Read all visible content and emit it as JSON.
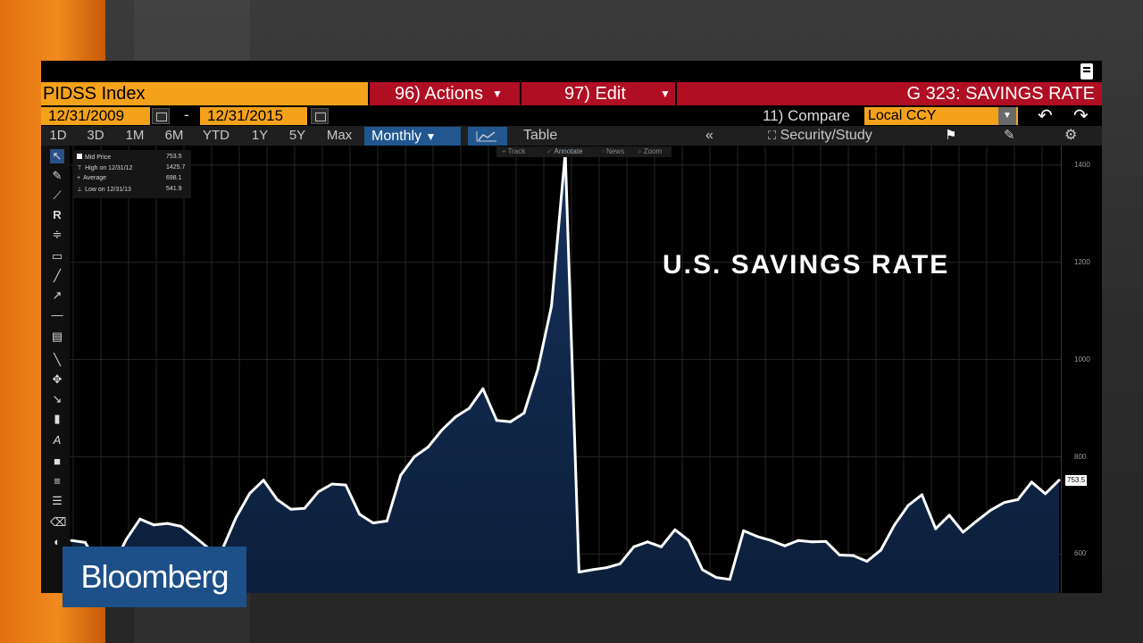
{
  "header": {
    "ticker": "PIDSS Index",
    "actions": "96) Actions",
    "edit": "97) Edit",
    "title": "G 323: SAVINGS RATE"
  },
  "range_bar": {
    "start_date": "12/31/2009",
    "end_date": "12/31/2015",
    "dash": "-",
    "compare_label": "11) Compare",
    "currency": "Local CCY"
  },
  "toolbar": {
    "ranges": [
      "1D",
      "3D",
      "1M",
      "6M",
      "YTD",
      "1Y",
      "5Y",
      "Max"
    ],
    "frequency": "Monthly",
    "table_label": "Table",
    "security_study": "Security/Study"
  },
  "chart_tabs": [
    "Track",
    "Annotate",
    "News",
    "Zoom"
  ],
  "legend": {
    "rows": [
      {
        "label": "Mid Price",
        "value": "753.5"
      },
      {
        "label": "High on 12/31/12",
        "value": "1425.7"
      },
      {
        "label": "Average",
        "value": "698.1"
      },
      {
        "label": "Low on 12/31/13",
        "value": "541.9"
      }
    ]
  },
  "overlay_title": "U.S. SAVINGS RATE",
  "logo": "Bloomberg",
  "colors": {
    "orange": "#f5a21b",
    "red": "#b00e23",
    "blue": "#21568f",
    "area_top": "#153059",
    "line": "#ffffff"
  },
  "chart_data": {
    "type": "area",
    "title": "",
    "xlabel": "",
    "ylabel": "",
    "ylim": [
      520,
      1440
    ],
    "yticks": [
      "600",
      "800",
      "1000",
      "1200",
      "1400"
    ],
    "last_value": "753.5",
    "series": [
      {
        "values": [
          628,
          624,
          575,
          574,
          630,
          672,
          660,
          663,
          657,
          635,
          612,
          610,
          675,
          725,
          752,
          712,
          692,
          694,
          728,
          744,
          742,
          682,
          664,
          668,
          762,
          800,
          820,
          855,
          882,
          900,
          940,
          875,
          872,
          890,
          980,
          1110,
          1425,
          563,
          568,
          572,
          580,
          615,
          625,
          615,
          650,
          628,
          568,
          552,
          548,
          648,
          636,
          628,
          617,
          628,
          625,
          626,
          598,
          597,
          585,
          608,
          660,
          700,
          722,
          652,
          680,
          645,
          668,
          690,
          706,
          712,
          748,
          724,
          752
        ]
      }
    ]
  }
}
